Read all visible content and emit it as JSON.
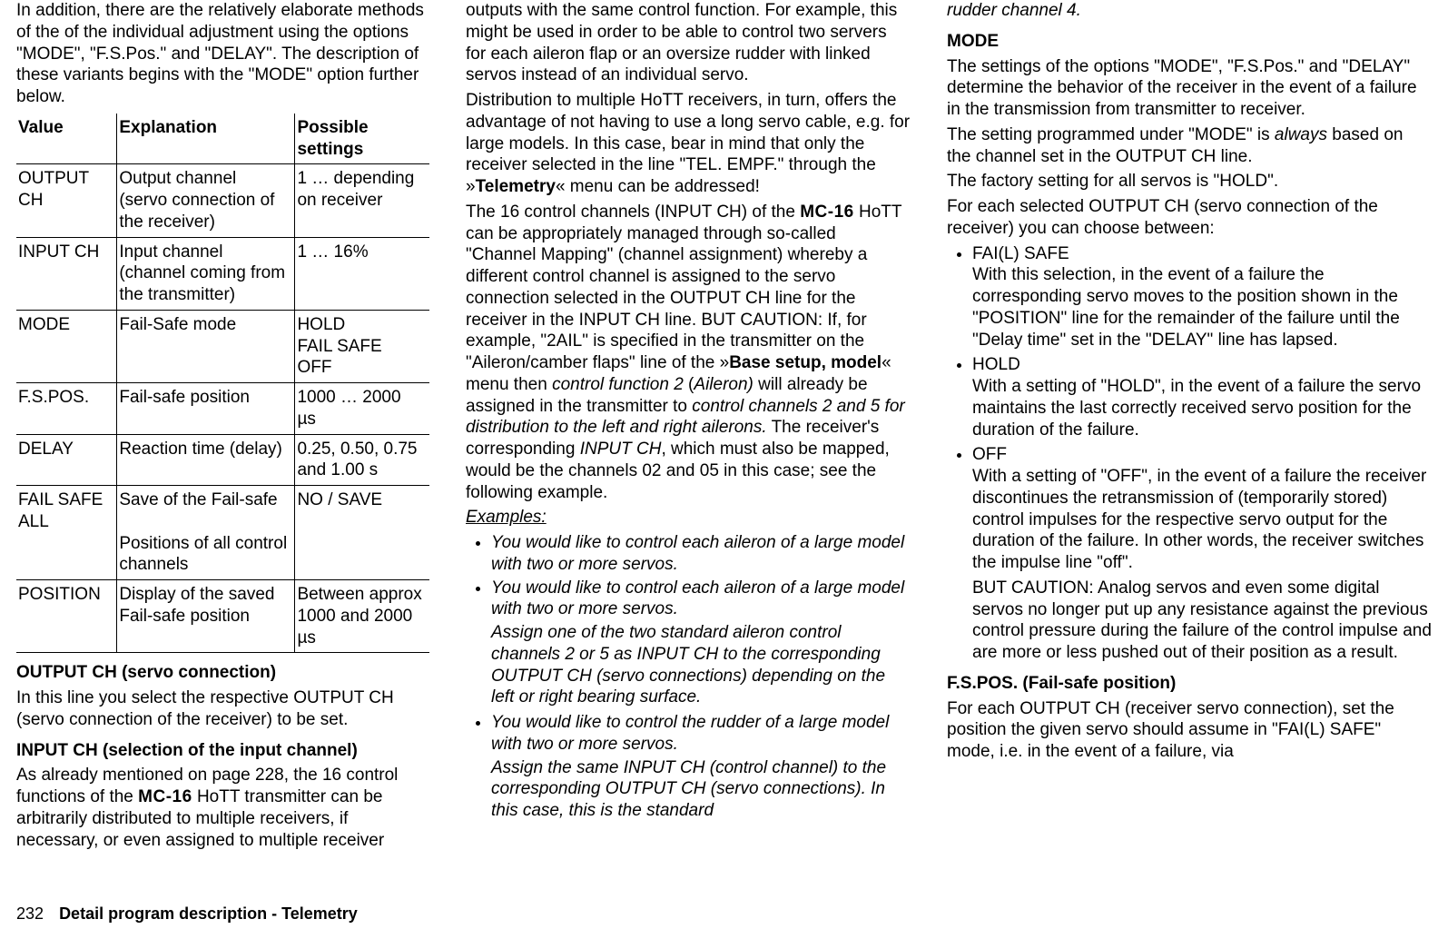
{
  "col1": {
    "intro": "In addition, there are the relatively elaborate methods of the of the individual adjustment using the options \"MODE\", \"F.S.Pos.\" and \"DELAY\". The description of these variants begins with the \"MODE\" option further below.",
    "table": {
      "headers": [
        "Value",
        "Explanation",
        "Possible settings"
      ],
      "rows": [
        [
          "OUTPUT CH",
          "Output channel (servo connection of the receiver)",
          "1 … depending on receiver"
        ],
        [
          "INPUT CH",
          "Input channel (channel coming from the transmitter)",
          "1 … 16%"
        ],
        [
          "MODE",
          "Fail-Safe mode",
          "HOLD\nFAIL SAFE\nOFF"
        ],
        [
          "F.S.POS.",
          "Fail-safe position",
          "1000 … 2000 µs"
        ],
        [
          "DELAY",
          "Reaction time (delay)",
          "0.25, 0.50, 0.75 and 1.00 s"
        ],
        [
          "FAIL SAFE ALL",
          "Save of the Fail-safe\n\nPositions of all control channels",
          "NO / SAVE"
        ],
        [
          "POSITION",
          "Display of the saved Fail-safe position",
          "Between approx 1000 and 2000 µs"
        ]
      ]
    },
    "h1": "OUTPUT CH (servo connection)",
    "p1": "In this line you select the respective OUTPUT CH (servo connection of the receiver) to be set.",
    "h2": "INPUT CH (selection of the input channel)",
    "p2a": "As already mentioned on page 228, the 16 control functions of the ",
    "brand": "MC-16",
    "p2b": " HoTT transmitter can be arbitrarily distributed to multiple receivers, if necessary, or even assigned to multiple receiver"
  },
  "col2": {
    "p1": "outputs with the same control function. For example, this might be used in order to be able to control two servers for each aileron flap or an oversize rudder with linked servos instead of an individual servo.",
    "p2a": "Distribution to multiple HoTT receivers, in turn, offers the advantage of not having to use a long servo cable, e.g. for large models. In this case, bear in mind that only the receiver selected in the line \"TEL. EMPF.\" through the »",
    "p2b": "Telemetry",
    "p2c": "« menu can be addressed!",
    "p3a": "The 16 control channels (INPUT CH) of the ",
    "brand": "MC-16",
    "p3b": " HoTT can be appropriately managed through so-called \"Channel Mapping\" (channel assignment) whereby a different control channel is assigned to the servo connection selected in the OUTPUT CH line for the receiver in the INPUT CH line. BUT CAUTION: If, for example, \"2AIL\" is specified in the transmitter on the \"Aileron/camber flaps\" line of the »",
    "p3c": "Base setup, model",
    "p3d": "« menu then ",
    "p3e": "control function 2",
    "p3f": " (",
    "p3g": "Aileron)",
    "p3h": " will already be assigned in the transmitter to ",
    "p3i": "control channels 2 and 5 for distribution to the left and right ailerons.",
    "p3j": " The receiver's corresponding ",
    "p3k": "INPUT CH",
    "p3l": ", which must also be mapped, would be the channels 02 and 05 in this case; see the following example.",
    "exHead": "Examples:",
    "ex1": "You would like to control each aileron of a large model with two or more servos.",
    "ex2": "You would like to control each aileron of a large model with two or more servos.",
    "ex2sub": "Assign one of the two standard aileron control channels 2 or 5 as INPUT CH to the corresponding OUTPUT CH (servo connections) depending on the left or right bearing surface.",
    "ex3": "You would like to control the rudder of a large model with two or more servos.",
    "ex3sub": "Assign the same INPUT CH (control channel) to the corresponding OUTPUT CH (servo connections). In this case, this is the standard"
  },
  "col3": {
    "top": "rudder channel 4.",
    "hMode": "MODE",
    "pMode1": "The settings of the options \"MODE\", \"F.S.Pos.\" and \"DELAY\" determine the behavior of the receiver in the event of a failure in the transmission from transmitter to receiver.",
    "pMode2a": "The setting programmed under \"MODE\" is ",
    "pMode2b": "always",
    "pMode2c": " based on the channel set in the OUTPUT CH line.",
    "pMode3": "The factory setting for all servos is \"HOLD\".",
    "pMode4": "For each selected OUTPUT CH (servo connection of the receiver) you can choose between:",
    "liFail": "FAI(L) SAFE",
    "liFailTxt": "With this selection, in the event of a failure the corresponding servo moves to the position shown in the \"POSITION\" line for the remainder of the failure until the \"Delay time\" set in the \"DELAY\" line has lapsed.",
    "liHold": "HOLD",
    "liHoldTxt": "With a setting of \"HOLD\", in the event of a failure the servo maintains the last correctly received servo position for the duration of the failure.",
    "liOff": "OFF",
    "liOffTxt1": "With a setting of \"OFF\", in the event of a failure the receiver discontinues the retransmission of (temporarily stored) control impulses for the respective servo output for the duration of the failure. In other words, the receiver switches the impulse line \"off\".",
    "liOffTxt2": "BUT CAUTION: Analog servos and even some digital servos no longer put up any resistance against the previous control pressure during the failure of the control impulse and are more or less pushed out of their position as a result.",
    "hFspos": "F.S.POS. (Fail-safe position)",
    "pFspos": "For each OUTPUT CH (receiver servo connection), set the position the given servo should assume in \"FAI(L) SAFE\" mode, i.e. in the event of a failure, via"
  },
  "footer": {
    "page": "232",
    "title": "Detail program description - Telemetry"
  }
}
